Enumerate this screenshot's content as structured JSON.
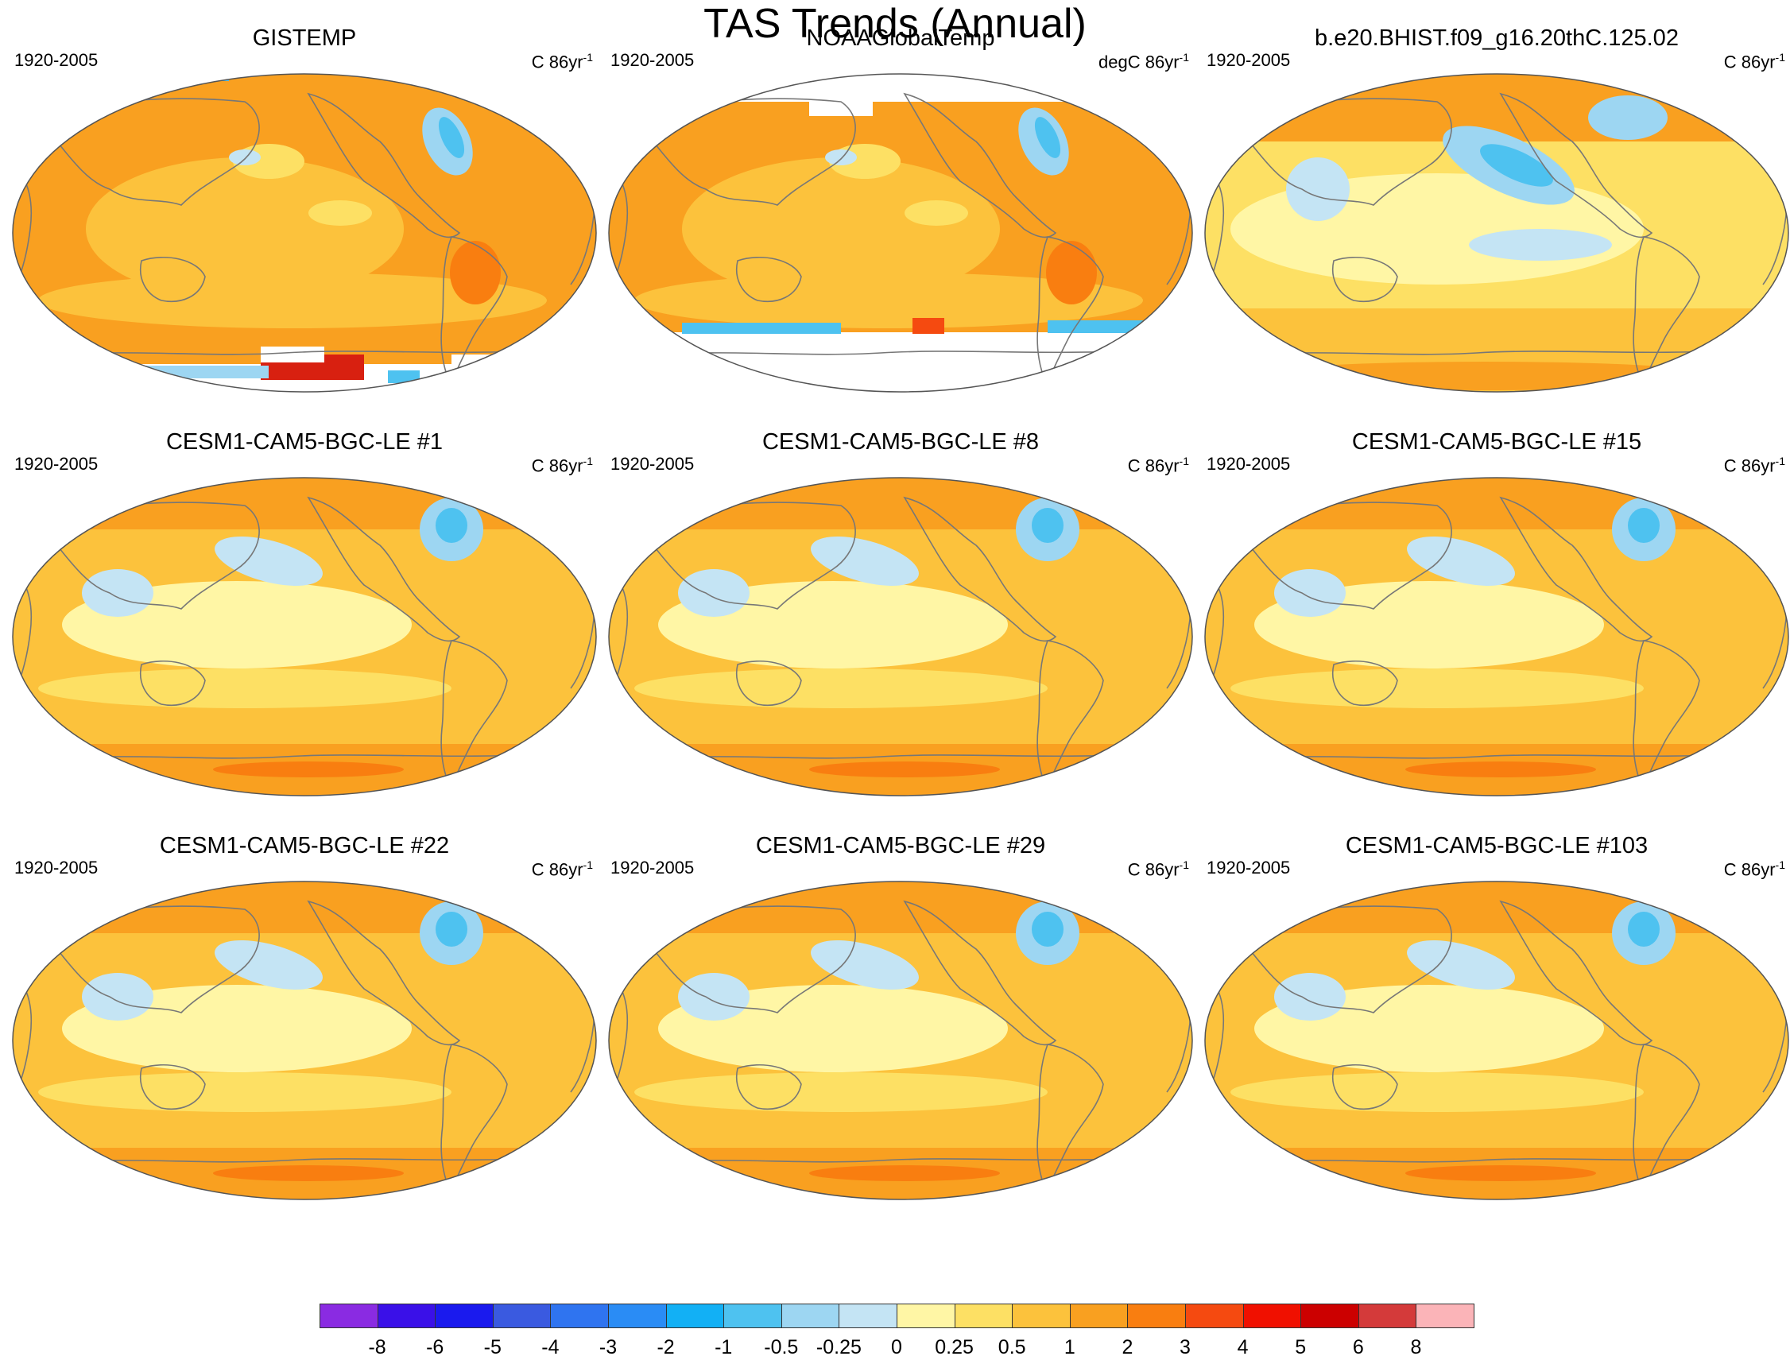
{
  "title": "TAS Trends (Annual)",
  "panels": [
    {
      "title": "GISTEMP",
      "period": "1920-2005",
      "units_prefix": "C 86yr",
      "units_exp": "-1",
      "variant": "obs"
    },
    {
      "title": "NOAAGlobalTemp",
      "period": "1920-2005",
      "units_prefix": "degC 86yr",
      "units_exp": "-1",
      "variant": "noaa"
    },
    {
      "title": "b.e20.BHIST.f09_g16.20thC.125.02",
      "period": "1920-2005",
      "units_prefix": "C 86yr",
      "units_exp": "-1",
      "variant": "model"
    },
    {
      "title": "CESM1-CAM5-BGC-LE #1",
      "period": "1920-2005",
      "units_prefix": "C 86yr",
      "units_exp": "-1",
      "variant": "ens"
    },
    {
      "title": "CESM1-CAM5-BGC-LE #8",
      "period": "1920-2005",
      "units_prefix": "C 86yr",
      "units_exp": "-1",
      "variant": "ens"
    },
    {
      "title": "CESM1-CAM5-BGC-LE #15",
      "period": "1920-2005",
      "units_prefix": "C 86yr",
      "units_exp": "-1",
      "variant": "ens"
    },
    {
      "title": "CESM1-CAM5-BGC-LE #22",
      "period": "1920-2005",
      "units_prefix": "C 86yr",
      "units_exp": "-1",
      "variant": "ens"
    },
    {
      "title": "CESM1-CAM5-BGC-LE #29",
      "period": "1920-2005",
      "units_prefix": "C 86yr",
      "units_exp": "-1",
      "variant": "ens"
    },
    {
      "title": "CESM1-CAM5-BGC-LE #103",
      "period": "1920-2005",
      "units_prefix": "C 86yr",
      "units_exp": "-1",
      "variant": "ens"
    }
  ],
  "colorbar": {
    "labels": [
      "-8",
      "-6",
      "-5",
      "-4",
      "-3",
      "-2",
      "-1",
      "-0.5",
      "-0.25",
      "0",
      "0.25",
      "0.5",
      "1",
      "2",
      "3",
      "4",
      "5",
      "6",
      "8"
    ],
    "colors": [
      "#8a2be2",
      "#3a10e8",
      "#1a1aee",
      "#3a5ae0",
      "#2f74f0",
      "#2a8cf5",
      "#12b0f5",
      "#4ec2f0",
      "#9dd6f2",
      "#c4e4f4",
      "#fff6a5",
      "#fde064",
      "#fcc23c",
      "#f9a020",
      "#f97e10",
      "#f54a10",
      "#f01000",
      "#cc0000",
      "#d43a3a",
      "#fbb4b8"
    ]
  },
  "palette": {
    "warm": "#fcc23c",
    "warmer": "#f9a020",
    "hot": "#f97e10",
    "mild": "#fde064",
    "pale": "#fff6a5",
    "cool": "#c4e4f4",
    "cooler": "#9dd6f2",
    "cold": "#4ec2f0",
    "red": "#f54a10",
    "coast": "#777777"
  }
}
